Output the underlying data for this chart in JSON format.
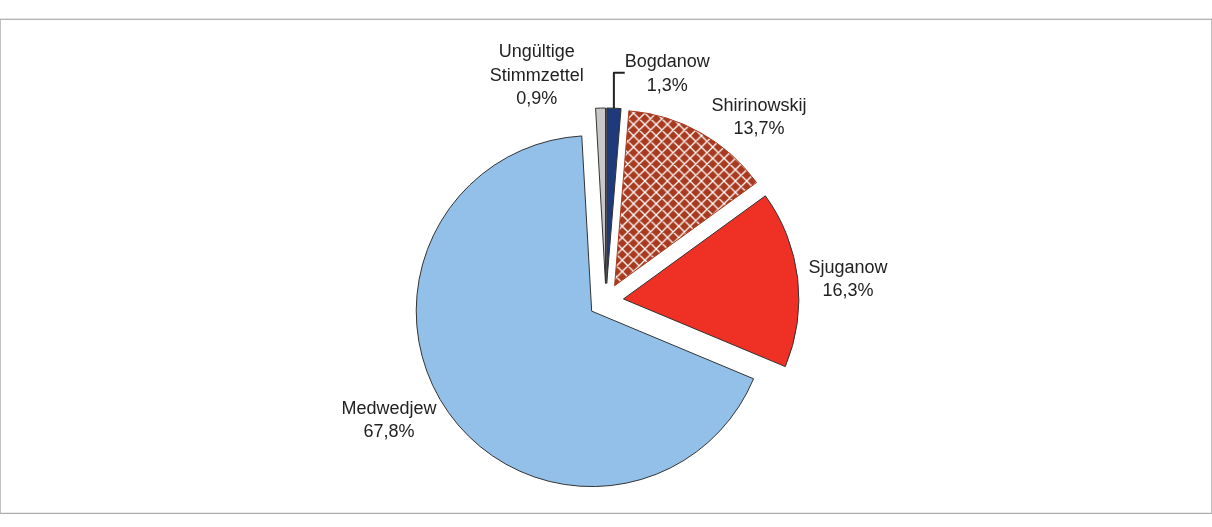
{
  "chart_data": {
    "type": "pie",
    "categories": [
      "Bogdanow",
      "Shirinowskij",
      "Sjuganow",
      "Medwedjew",
      "Ungültige Stimmzettel"
    ],
    "values": [
      1.3,
      13.7,
      16.3,
      67.8,
      0.9
    ],
    "value_labels": [
      "1,3%",
      "13,7%",
      "16,3%",
      "67,8%",
      "0,9%"
    ],
    "colors": [
      "#1f3a7a",
      "#a83a20",
      "#ee3124",
      "#93c0e8",
      "#c8c8c8"
    ],
    "legend": false
  }
}
